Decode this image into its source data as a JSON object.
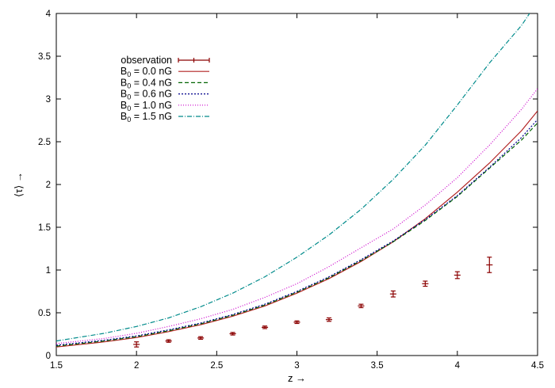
{
  "chart_data": {
    "type": "line",
    "xlabel": "z →",
    "ylabel": "⟨τ⟩ →",
    "xlim": [
      1.5,
      4.5
    ],
    "ylim": [
      0,
      4
    ],
    "x_ticks": [
      1.5,
      2,
      2.5,
      3,
      3.5,
      4,
      4.5
    ],
    "y_ticks": [
      0,
      0.5,
      1,
      1.5,
      2,
      2.5,
      3,
      3.5,
      4
    ],
    "x_tick_labels": [
      "1.5",
      "2",
      "2.5",
      "3",
      "3.5",
      "4",
      "4.5"
    ],
    "y_tick_labels": [
      "0",
      "0.5",
      "1",
      "1.5",
      "2",
      "2.5",
      "3",
      "3.5",
      "4"
    ],
    "grid": false,
    "legend_position": "top-left",
    "observation": {
      "label": "observation",
      "color": "#8b0000",
      "x": [
        2.0,
        2.2,
        2.4,
        2.6,
        2.8,
        3.0,
        3.2,
        3.4,
        3.6,
        3.8,
        4.0,
        4.2
      ],
      "y": [
        0.13,
        0.17,
        0.205,
        0.255,
        0.33,
        0.39,
        0.42,
        0.58,
        0.72,
        0.84,
        0.94,
        1.06
      ],
      "err": [
        0.03,
        0.015,
        0.015,
        0.015,
        0.015,
        0.015,
        0.02,
        0.02,
        0.035,
        0.03,
        0.04,
        0.09
      ],
      "x_halfwidth": 0.02
    },
    "series": [
      {
        "label_base": "B",
        "label_sub": "0",
        "label_rest": " = 0.0 nG",
        "color": "#b22222",
        "dash": "",
        "x": [
          1.5,
          1.8,
          2.0,
          2.2,
          2.4,
          2.6,
          2.8,
          3.0,
          3.2,
          3.4,
          3.6,
          3.8,
          4.0,
          4.2,
          4.4,
          4.5
        ],
        "y": [
          0.1,
          0.16,
          0.21,
          0.28,
          0.36,
          0.46,
          0.58,
          0.73,
          0.9,
          1.1,
          1.33,
          1.6,
          1.91,
          2.25,
          2.63,
          2.86
        ]
      },
      {
        "label_base": "B",
        "label_sub": "0",
        "label_rest": " = 0.4 nG",
        "color": "#006400",
        "dash": "5,3",
        "x": [
          1.5,
          1.8,
          2.0,
          2.2,
          2.4,
          2.6,
          2.8,
          3.0,
          3.2,
          3.4,
          3.6,
          3.8,
          4.0,
          4.2,
          4.4,
          4.5
        ],
        "y": [
          0.11,
          0.17,
          0.22,
          0.29,
          0.37,
          0.47,
          0.59,
          0.74,
          0.91,
          1.11,
          1.33,
          1.58,
          1.86,
          2.19,
          2.52,
          2.72
        ]
      },
      {
        "label_base": "B",
        "label_sub": "0",
        "label_rest": " = 0.6 nG",
        "color": "#00008b",
        "dash": "2,2",
        "x": [
          1.5,
          1.8,
          2.0,
          2.2,
          2.4,
          2.6,
          2.8,
          3.0,
          3.2,
          3.4,
          3.6,
          3.8,
          4.0,
          4.2,
          4.4,
          4.5
        ],
        "y": [
          0.12,
          0.18,
          0.23,
          0.3,
          0.38,
          0.48,
          0.6,
          0.75,
          0.92,
          1.12,
          1.34,
          1.59,
          1.87,
          2.2,
          2.55,
          2.76
        ]
      },
      {
        "label_base": "B",
        "label_sub": "0",
        "label_rest": " = 1.0 nG",
        "color": "#cc00cc",
        "dash": "1,2",
        "x": [
          1.5,
          1.8,
          2.0,
          2.2,
          2.4,
          2.6,
          2.8,
          3.0,
          3.2,
          3.4,
          3.6,
          3.8,
          4.0,
          4.2,
          4.4,
          4.5
        ],
        "y": [
          0.14,
          0.2,
          0.26,
          0.34,
          0.43,
          0.54,
          0.68,
          0.84,
          1.04,
          1.26,
          1.48,
          1.76,
          2.08,
          2.46,
          2.88,
          3.12
        ]
      },
      {
        "label_base": "B",
        "label_sub": "0",
        "label_rest": " = 1.5 nG",
        "color": "#008b8b",
        "dash": "6,2,1,2",
        "x": [
          1.5,
          1.8,
          2.0,
          2.2,
          2.4,
          2.6,
          2.8,
          3.0,
          3.2,
          3.4,
          3.6,
          3.8,
          4.0,
          4.2,
          4.4,
          4.45
        ],
        "y": [
          0.17,
          0.26,
          0.34,
          0.44,
          0.57,
          0.73,
          0.92,
          1.15,
          1.41,
          1.71,
          2.06,
          2.46,
          2.93,
          3.42,
          3.86,
          4.0
        ]
      }
    ]
  }
}
